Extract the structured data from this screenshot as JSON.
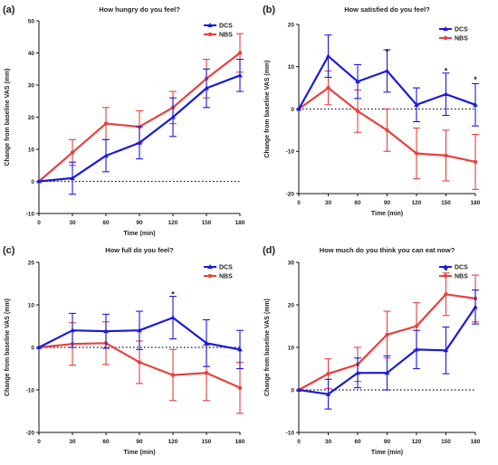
{
  "figure": {
    "title": "",
    "colors": {
      "DCS": "#1a1adb",
      "NBS": "#e8403f",
      "axis": "#111111",
      "baseline": "#111111"
    }
  },
  "chart_data": [
    {
      "type": "line",
      "panel_label": "(a)",
      "title": "How hungry do you feel?",
      "xlabel": "Time (min)",
      "ylabel": "Change from baseline VAS (mm)",
      "x": [
        0,
        30,
        60,
        90,
        120,
        150,
        180
      ],
      "xticks": [
        "0",
        "30",
        "60",
        "90",
        "120",
        "150",
        "180"
      ],
      "ylim": [
        -10,
        50
      ],
      "yticks": [
        -10,
        0,
        10,
        20,
        30,
        40,
        50
      ],
      "legend_position": "top-right",
      "series": [
        {
          "name": "DCS",
          "values": [
            0,
            1,
            8,
            12,
            20,
            29,
            33
          ],
          "err": [
            0,
            5,
            5,
            5,
            6,
            6,
            5
          ]
        },
        {
          "name": "NBS",
          "values": [
            0,
            9,
            18,
            17,
            23,
            32,
            40
          ],
          "err": [
            0,
            4,
            5,
            5,
            5,
            6,
            6
          ]
        }
      ],
      "annotations": []
    },
    {
      "type": "line",
      "panel_label": "(b)",
      "title": "How satisfied do you feel?",
      "xlabel": "Time (min)",
      "ylabel": "Change from baseline VAS (mm)",
      "x": [
        0,
        30,
        60,
        90,
        120,
        150,
        180
      ],
      "xticks": [
        "0",
        "30",
        "60",
        "90",
        "120",
        "150",
        "180"
      ],
      "ylim": [
        -20,
        20
      ],
      "yticks": [
        -20,
        -10,
        0,
        10,
        20
      ],
      "legend_position": "top-right",
      "series": [
        {
          "name": "DCS",
          "values": [
            0,
            12.5,
            6.5,
            9,
            1,
            3.5,
            1
          ],
          "err": [
            0,
            5,
            4,
            5,
            4,
            5,
            5
          ]
        },
        {
          "name": "NBS",
          "values": [
            0,
            5,
            -0.5,
            -5,
            -10.5,
            -11,
            -12.5
          ],
          "err": [
            0,
            4,
            5,
            5,
            6,
            6,
            6.5
          ]
        }
      ],
      "annotations": [
        {
          "x": 90,
          "y": 13.5,
          "text": "*"
        },
        {
          "x": 150,
          "y": 9,
          "text": "*"
        },
        {
          "x": 180,
          "y": 7,
          "text": "*"
        }
      ]
    },
    {
      "type": "line",
      "panel_label": "(c)",
      "title": "How full do you feel?",
      "xlabel": "Time (min)",
      "ylabel": "Change from baseline VAS (mm)",
      "x": [
        0,
        30,
        60,
        90,
        120,
        150,
        180
      ],
      "xticks": [
        "0",
        "30",
        "60",
        "90",
        "120",
        "150",
        "180"
      ],
      "ylim": [
        -20,
        20
      ],
      "yticks": [
        -20,
        -10,
        0,
        10,
        20
      ],
      "legend_position": "top-right",
      "series": [
        {
          "name": "DCS",
          "values": [
            0,
            4,
            3.8,
            4,
            7,
            1,
            -0.5
          ],
          "err": [
            0,
            4,
            4,
            4.5,
            5,
            5.5,
            4.5
          ]
        },
        {
          "name": "NBS",
          "values": [
            0,
            0.8,
            1,
            -3.5,
            -6.5,
            -6,
            -9.5
          ],
          "err": [
            0,
            5,
            5,
            5,
            6,
            6.5,
            6
          ]
        }
      ],
      "annotations": [
        {
          "x": 120,
          "y": 12.5,
          "text": "*"
        }
      ]
    },
    {
      "type": "line",
      "panel_label": "(d)",
      "title": "How much do you think you can eat now?",
      "xlabel": "Time (min)",
      "ylabel": "Change from baseline VAS (mm)",
      "x": [
        0,
        30,
        60,
        90,
        120,
        150,
        180
      ],
      "xticks": [
        "0",
        "30",
        "60",
        "90",
        "120",
        "150",
        "180"
      ],
      "ylim": [
        -10,
        30
      ],
      "yticks": [
        -10,
        0,
        10,
        20,
        30
      ],
      "legend_position": "top-right",
      "series": [
        {
          "name": "DCS",
          "values": [
            0,
            -1,
            4,
            4,
            9.5,
            9.3,
            19.5
          ],
          "err": [
            0,
            3.5,
            3.5,
            4,
            4.5,
            5.5,
            4
          ]
        },
        {
          "name": "NBS",
          "values": [
            0,
            3.8,
            6,
            13,
            15,
            22.5,
            21.5
          ],
          "err": [
            0,
            3.5,
            4,
            5.5,
            5.5,
            5,
            5.5
          ]
        }
      ],
      "annotations": [
        {
          "x": 150,
          "y": 28,
          "text": "*"
        }
      ]
    }
  ]
}
